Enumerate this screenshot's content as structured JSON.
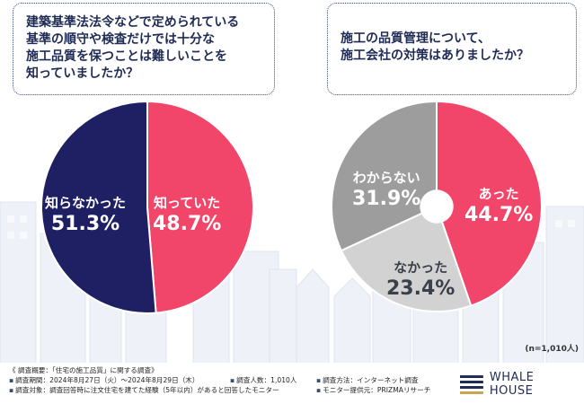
{
  "questions": {
    "q1": "建築基準法法令などで定められている\n基準の順守や検査だけでは十分な\n施工品質を保つことは難しいことを\n知っていましたか？",
    "q2": "施工の品質管理について、\n施工会社の対策はありましたか？"
  },
  "chart_data": [
    {
      "type": "pie",
      "title": "建築基準法法令などで定められている基準の順守や検査だけでは十分な施工品質を保つことは難しいことを知っていましたか？",
      "slices": [
        {
          "label": "知っていた",
          "value": 48.7,
          "display": "48.7%",
          "color": "#f2456a"
        },
        {
          "label": "知らなかった",
          "value": 51.3,
          "display": "51.3%",
          "color": "#1f1f64"
        }
      ]
    },
    {
      "type": "pie",
      "donut": true,
      "title": "施工の品質管理について、施工会社の対策はありましたか？",
      "slices": [
        {
          "label": "あった",
          "value": 44.7,
          "display": "44.7%",
          "color": "#f2456a"
        },
        {
          "label": "なかった",
          "value": 23.4,
          "display": "23.4%",
          "color": "#d2d2d2"
        },
        {
          "label": "わからない",
          "value": 31.9,
          "display": "31.9%",
          "color": "#9d9d9d"
        }
      ]
    }
  ],
  "sample_size": "(n=1,010人)",
  "footer": {
    "summary": "《 調査概要：「住宅の施工品質」に関する調査》",
    "period": "調査期間：2024年8月27日（火）〜2024年8月29日（木）",
    "respondents": "調査人数：1,010人",
    "method": "調査方法：インターネット調査",
    "target": "調査対象：調査回答時に注文住宅を建てた経験（5年以内）があると回答したモニター",
    "provider": "モニター提供元：PRIZMAリサーチ",
    "bullet": "▪"
  },
  "logo": {
    "text": "WHALE HOUSE",
    "name": "whale-house-logo"
  }
}
